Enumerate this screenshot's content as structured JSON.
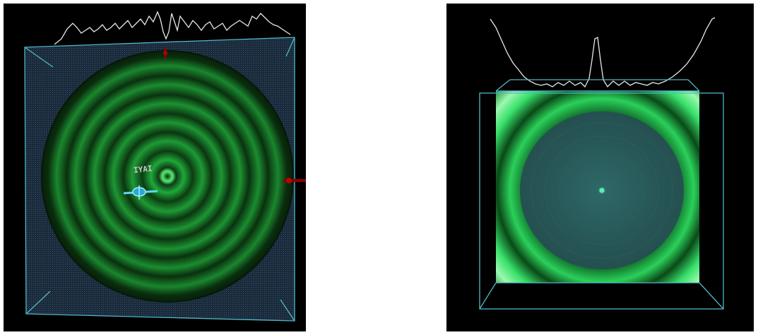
{
  "panels": [
    {
      "id": "left",
      "view": "front",
      "background": "#000000",
      "frame_color": "#4fb8c8",
      "ring_colors": [
        "#0c3d12",
        "#1fa83a",
        "#55f070"
      ],
      "rings": 7,
      "overlay_glyph_label": "IYAI",
      "markers": [
        "red-axis-marker-top",
        "red-axis-marker-right",
        "cyan-probe-marker"
      ]
    },
    {
      "id": "right",
      "view": "perspective",
      "background": "#000000",
      "frame_color": "#4fb8c8",
      "plane_colors": [
        "#0a4a18",
        "#2bd05a",
        "#9cf8b0"
      ],
      "disc_color": "#2a5a5a"
    }
  ]
}
